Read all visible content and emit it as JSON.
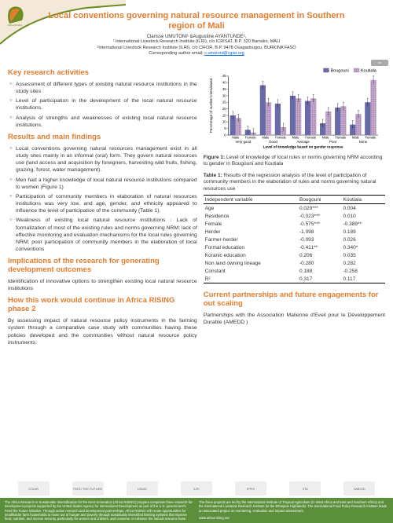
{
  "header": {
    "title": "Local conventions governing natural resource management in Southern region of Mali",
    "authors_html": "Clarisse UMUTONI¹ &Augustine AYANTUNDE²,",
    "affil1": "¹ International Livestock Research Institute (ILRI), c/o ICRISAT, B.P. 320 Bamako, MALI",
    "affil2": "²International Livestock Research Institute (ILRI), c/o CIFOR, B.P. 9478 Ouagadougou, BURKINA FASO",
    "corresponding_label": "Corresponding author email:",
    "corresponding_email": "c.umutoni@cgiar.org"
  },
  "sections": {
    "key_research": {
      "heading": "Key research activities",
      "items": [
        "Assessment of different types of existing natural resource institutions in the study sites",
        "Level of participation in the development of the local natural resource institutions.",
        "Analysis of strengths and weaknesses of existing local natural resource institutions."
      ]
    },
    "results": {
      "heading": "Results and main findings",
      "items": [
        "Local conventions governing natural resources management exist in all study sites mainly in an informal (oral) form. They govern natural resources use (land access and acquisition by foreigners, harvesting wild fruits, fishing, grazing, forest, water management).",
        "Men had a higher knowledge of local natural resource institutions compared to women (Figure 1)",
        "Participation of community members in elaboration of natural resources institutions was very low, and age, gender, and ethnicity appeared to influence the level of participation of the community (Table 1).",
        "Weakness of existing local natural resource institutions : Lack of formalization of most of the existing rules and norms governing NRM; lack of effective monitoring and evaluation mechanisms for the local rules governing NRM; poor participation of community members in the elaboration of local conventions"
      ]
    },
    "implications": {
      "heading": "Implications of the research for generating development outcomes",
      "text": "Identification of innovative options  to strengthen existing local natural resource institutions"
    },
    "continue": {
      "heading": "How this work would continue in Africa RISING phase 2",
      "text": "By assessing impact of  natural resource policy  instruments in the farming system through a comparative case study with communities having these policies developed and the communities  without natural resource policy  instruments."
    },
    "partnerships": {
      "heading": "Current partnerships and future engagements for out scaling",
      "text": "Partnerships with the Association Malienne d'Eveil pour le Développement Durable (AMEDD )"
    }
  },
  "chart": {
    "type": "bar",
    "y_label": "Percentage of number interviewed",
    "x_label": "Level of knowledge based on gender response",
    "y_label_fontsize": 5,
    "x_label_fontsize": 5,
    "tick_fontsize": 4.5,
    "legend": [
      "Bougouni",
      "Koutiala"
    ],
    "legend_fontsize": 6,
    "categories_top": [
      "Male",
      "Female",
      "Male",
      "Female",
      "Male",
      "Female",
      "Male",
      "Female",
      "Male",
      "Female"
    ],
    "categories_bottom": [
      "Very good",
      "Good",
      "Average",
      "Poor",
      "None"
    ],
    "series": [
      {
        "name": "Bougouni",
        "values": [
          15,
          4,
          38,
          24,
          30,
          26,
          9,
          21,
          8,
          25
        ],
        "fill": "#6a6aa9",
        "pattern": "solid"
      },
      {
        "name": "Koutiala",
        "values": [
          13,
          2,
          25,
          6,
          28,
          28,
          18,
          22,
          16,
          42
        ],
        "fill": "#c4a8cc",
        "pattern": "dots"
      }
    ],
    "ylim": [
      0,
      45
    ],
    "ytick_step": 5,
    "bar_width": 0.38,
    "background_color": "#ffffff",
    "axis_color": "#000000",
    "error_bars": true,
    "error_bar_value": 3
  },
  "figure_caption": {
    "label": "Figure 1:",
    "text": "Level of knowledge of local rules or norms governing NRM according to gender in Bougouni and Koutiala"
  },
  "table_caption": {
    "label": "Table 1:",
    "text": "Results of the regression analysis of the level of participation of community members in the elaboration of rules and norms governing natural resources  use"
  },
  "table": {
    "columns": [
      "Independent variable",
      "Bougouni",
      "Koutiala"
    ],
    "rows": [
      [
        "Age",
        "0.029***",
        "0.004"
      ],
      [
        "Residence",
        "-0.023***",
        "0.010"
      ],
      [
        "Female",
        "-0.575***",
        "-0.389**"
      ],
      [
        "Herder",
        "-1.098",
        "0.189"
      ],
      [
        "Farmer-herder",
        "-0.093",
        "0.026"
      ],
      [
        "Formal education",
        "-0.411**",
        "0.340*"
      ],
      [
        "Koranic education",
        "0.206",
        "0.035"
      ],
      [
        "Non land owning lineage",
        "-0.280",
        "0.282"
      ],
      [
        "Constant",
        "0.188",
        "-0.258"
      ],
      [
        "R²",
        "0.317",
        "0.117"
      ]
    ],
    "col_widths": [
      "52%",
      "24%",
      "24%"
    ]
  },
  "footer": {
    "logos": [
      "CGIAR",
      "FEED THE FUTURE",
      "USAID",
      "ILRI",
      "IFPRI",
      "IITA",
      "AMEDD"
    ],
    "bar_text_left": "The Africa Research in Sustainable Intensification for the Next Generation (Africa RISING) program comprises three research-for-development projects supported by the United States Agency for International Development as part of the U.S. government's Feed the Future initiative.\n\nThrough action research and development partnerships, Africa RISING will create opportunities for smallholder farm households to move out of hunger and poverty through sustainably intensified farming systems that improve food, nutrition, and income security, particularly for women and children, and conserve or enhance the natural resource base.",
    "bar_text_right": "The three projects are led by the International Institute of Tropical Agriculture (in West Africa and East and Southern Africa) and the International Livestock Research Institute (in the Ethiopian Highlands). The International Food Policy Research Institute leads an associated project on monitoring, evaluation and impact assessment.",
    "url": "www.africa-rising.net"
  },
  "cc_label": "cc"
}
